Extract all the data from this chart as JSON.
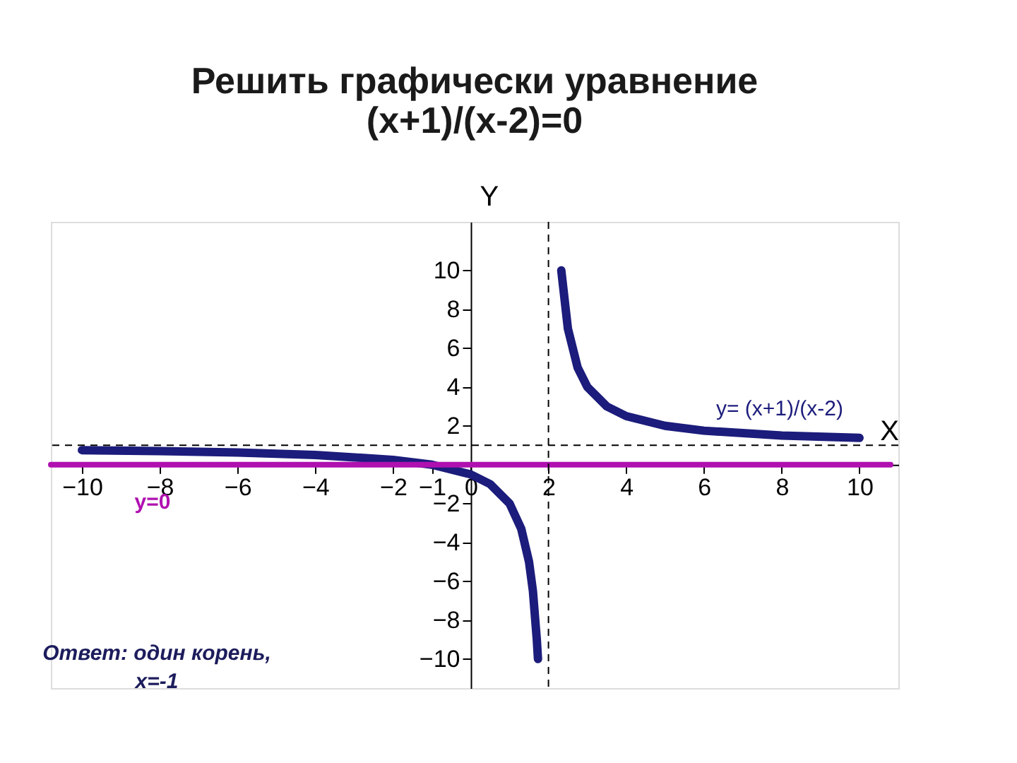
{
  "chart_data": {
    "type": "line",
    "title": "Решить графически уравнение\n(x+1)/(x-2)=0",
    "xlabel": "X",
    "ylabel": "Y",
    "xlim": [
      -10.8,
      11
    ],
    "ylim": [
      -11.5,
      12.5
    ],
    "xticks": [
      -10,
      -8,
      -6,
      -4,
      -2,
      -1,
      0,
      2,
      4,
      6,
      8,
      10
    ],
    "yticks": [
      -10,
      -8,
      -6,
      -4,
      -2,
      2,
      4,
      6,
      8,
      10
    ],
    "grid": false,
    "legend": false,
    "marker": "none",
    "line_style": "solid",
    "series": [
      {
        "name": "y= (x+1)/(x-2)",
        "color": "#1c1c7c",
        "x": [
          -10,
          -8,
          -6,
          -4,
          -2,
          -1,
          0,
          0.5,
          1,
          1.3,
          1.5,
          1.6,
          1.7,
          1.73,
          2,
          2.33,
          2.5,
          2.75,
          3,
          3.5,
          4,
          5,
          6,
          8,
          10
        ],
        "values": [
          0.75,
          0.7,
          0.63,
          0.5,
          0.25,
          0,
          -0.5,
          -1,
          -2,
          -3.3,
          -5,
          -6.5,
          -9,
          -10,
          null,
          10,
          7,
          5,
          4,
          3,
          2.5,
          2,
          1.75,
          1.5,
          1.38
        ]
      },
      {
        "name": "y=0",
        "color": "#b010b0",
        "x": [
          -10.8,
          10.8
        ],
        "values": [
          0,
          0
        ]
      }
    ],
    "ref_lines": [
      {
        "axis": "x",
        "value": 2,
        "color": "#000000",
        "line_style": "dashed"
      },
      {
        "axis": "y",
        "value": 1,
        "color": "#000000",
        "line_style": "dashed"
      }
    ],
    "annotations": [
      "Ответ: один корень,\nx=-1"
    ]
  }
}
